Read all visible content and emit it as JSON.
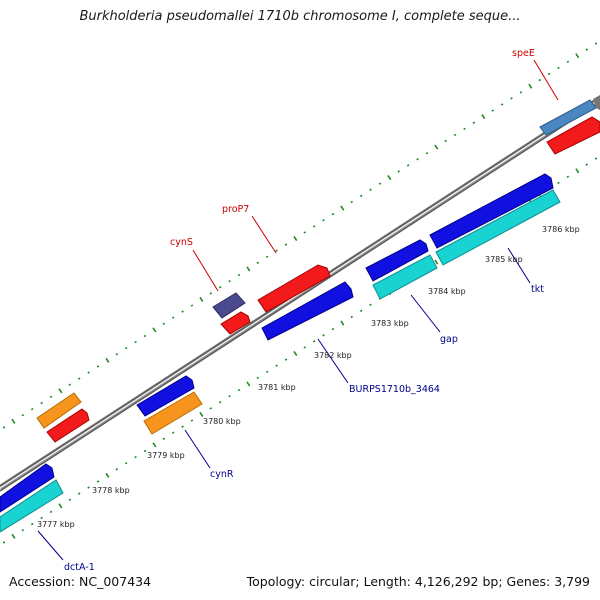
{
  "title": "Burkholderia pseudomallei 1710b chromosome I, complete seque...",
  "footer": {
    "accession": "Accession: NC_007434",
    "stats": "Topology: circular; Length: 4,126,292 bp; Genes: 3,799"
  },
  "colors": {
    "backbone": "#8a8a8a",
    "tick": "#1f8a1f",
    "blue_feature": "#1010e0",
    "cyan_feature": "#19d2d2",
    "red_feature": "#f21a1a",
    "orange_feature": "#f7941d",
    "steelblue_feature": "#4a86c0",
    "purple_feature": "#4a4a8e",
    "label_red": "#cc0000",
    "label_blue": "#00008b"
  },
  "kbp_labels": [
    "3777 kbp",
    "3778 kbp",
    "3779 kbp",
    "3780 kbp",
    "3781 kbp",
    "3782 kbp",
    "3783 kbp",
    "3784 kbp",
    "3785 kbp",
    "3786 kbp"
  ],
  "gene_labels": [
    {
      "name": "speE",
      "strand": "forward"
    },
    {
      "name": "proP7",
      "strand": "forward"
    },
    {
      "name": "cynS",
      "strand": "forward"
    },
    {
      "name": "gap",
      "strand": "reverse"
    },
    {
      "name": "tkt",
      "strand": "reverse"
    },
    {
      "name": "BURPS1710b_3464",
      "strand": "reverse"
    },
    {
      "name": "cynR",
      "strand": "reverse"
    },
    {
      "name": "dctA-1",
      "strand": "reverse"
    }
  ]
}
